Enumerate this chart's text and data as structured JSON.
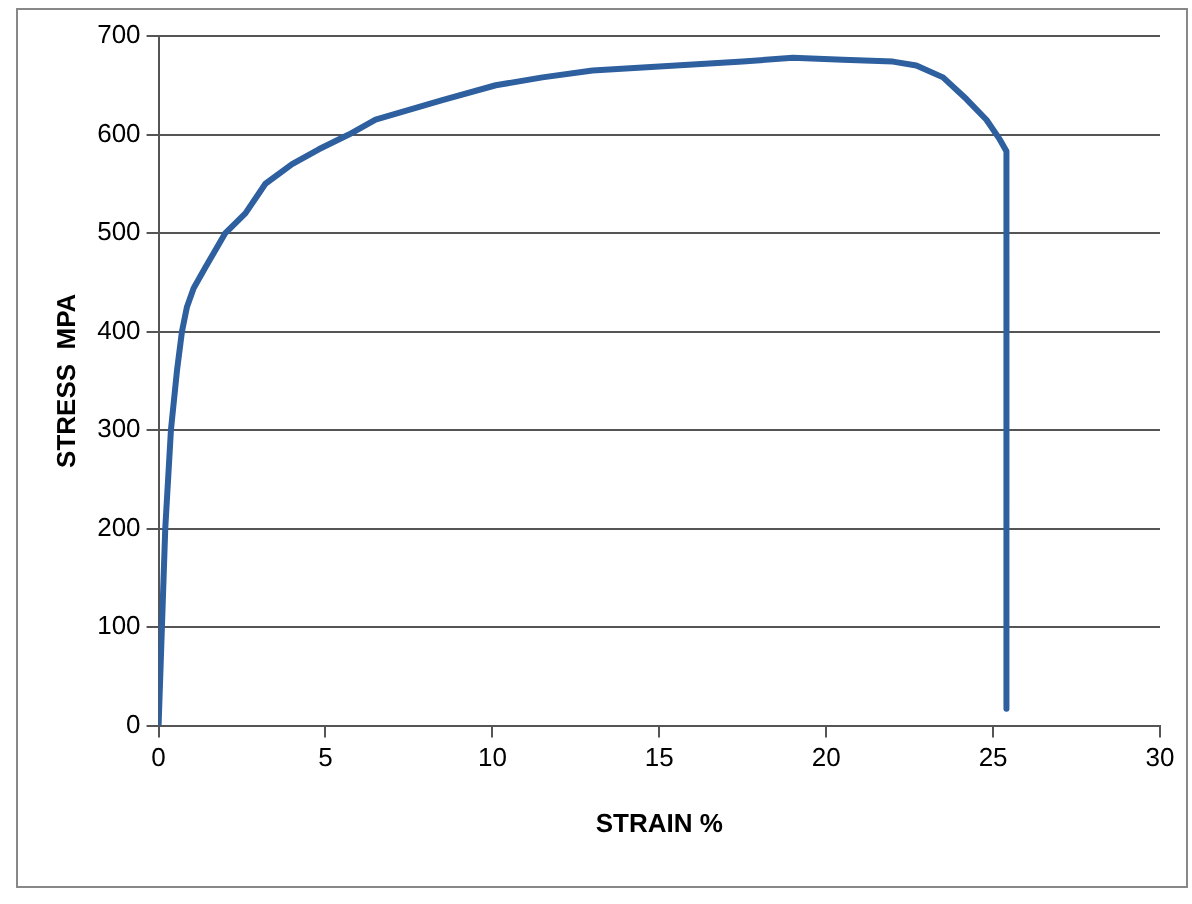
{
  "chart_data": {
    "type": "line",
    "xlabel": "STRAIN %",
    "ylabel": "STRESS  MPA",
    "x": [
      0,
      0.1,
      0.2,
      0.37,
      0.55,
      0.7,
      0.85,
      1.05,
      1.4,
      2,
      2.6,
      3.2,
      4,
      4.8,
      5.7,
      6.5,
      7.5,
      8.5,
      10.1,
      11.5,
      13,
      14.5,
      16,
      17.5,
      19,
      20.5,
      22,
      22.7,
      23.5,
      24.2,
      24.8,
      25.2,
      25.4,
      25.4
    ],
    "series": [
      {
        "color": "#2e5f9e",
        "values": [
          0,
          100,
          200,
          300,
          360,
          400,
          425,
          444,
          465,
          500,
          520,
          550,
          570,
          585,
          600,
          615,
          625,
          635,
          650,
          658,
          665,
          668,
          671,
          674,
          678,
          676,
          674,
          670,
          658,
          636,
          615,
          595,
          583,
          17
        ]
      }
    ],
    "xlim": [
      0,
      30
    ],
    "xticks": [
      0,
      5,
      10,
      15,
      20,
      25,
      30
    ],
    "ylim": [
      0,
      700
    ],
    "yticks": [
      0,
      100,
      200,
      300,
      400,
      500,
      600,
      700
    ],
    "grid": "y",
    "legend": false,
    "marker": "none",
    "line_style": "solid"
  }
}
